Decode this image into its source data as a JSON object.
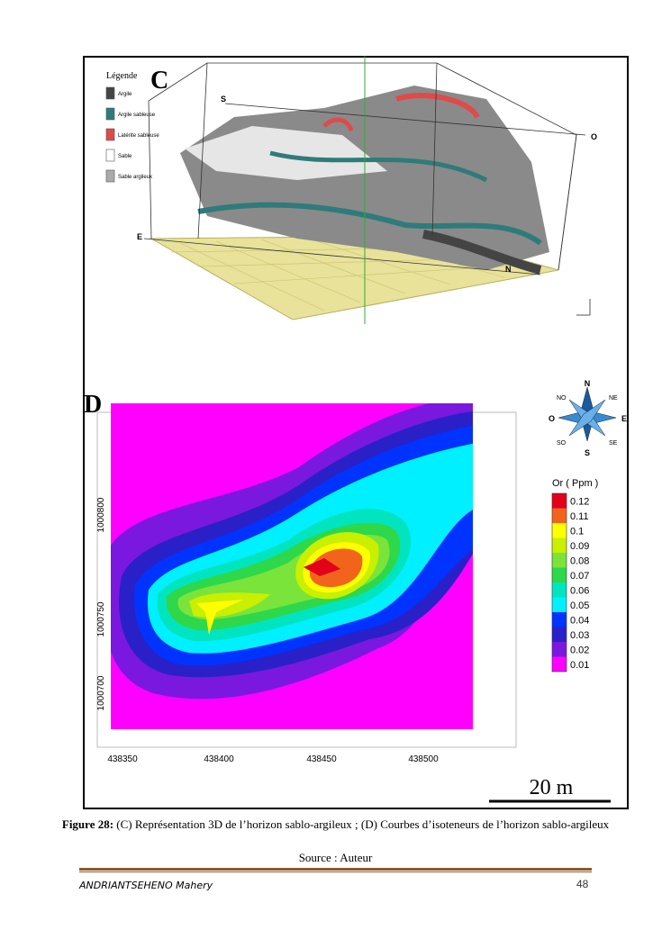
{
  "figure_c": {
    "panel": "C",
    "legend": {
      "title": "Légende",
      "items": [
        {
          "label": "Argile",
          "color": "#444444"
        },
        {
          "label": "Argile sableuse",
          "color": "#2f7b7b"
        },
        {
          "label": "Latérite sableuse",
          "color": "#e04a4a"
        },
        {
          "label": "Sable",
          "color": "#ffffff"
        },
        {
          "label": "Sable argileux",
          "color": "#ababab"
        }
      ]
    },
    "directions": {
      "s": "S",
      "o": "O",
      "e": "E",
      "n": "N"
    }
  },
  "figure_d": {
    "panel": "D",
    "x_ticks": [
      "438350",
      "438400",
      "438450",
      "438500"
    ],
    "y_ticks": [
      "1000800",
      "1000750",
      "1000700"
    ],
    "colorbar": {
      "title": "Or ( Ppm )",
      "levels": [
        0.12,
        0.11,
        0.1,
        0.09,
        0.08,
        0.07,
        0.06,
        0.05,
        0.04,
        0.03,
        0.02,
        0.01
      ],
      "colors": [
        "#e3001b",
        "#f2641b",
        "#ffff00",
        "#c8f000",
        "#7ae43a",
        "#2ed84a",
        "#00e5c0",
        "#00f0ff",
        "#0033ff",
        "#2a20c8",
        "#7a18e0",
        "#ff00ff"
      ]
    },
    "compass": {
      "n": "N",
      "ne": "NE",
      "e": "E",
      "se": "SE",
      "s": "S",
      "so": "SO",
      "o": "O",
      "no": "NO"
    },
    "scale_bar": "20 m"
  },
  "caption": {
    "label": "Figure 28:",
    "text": " (C) Représentation 3D de l’horizon sablo-argileux  ; (D) Courbes d’isoteneurs de l’horizon sablo-argileux",
    "source": "Source : Auteur"
  },
  "footer": {
    "author": "ANDRIANTSEHENO Mahery",
    "page": "48"
  }
}
